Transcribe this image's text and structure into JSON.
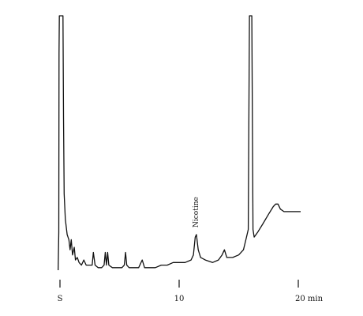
{
  "chart_data": {
    "type": "line",
    "title": "",
    "xlabel": "",
    "ylabel": "",
    "xlim": [
      0,
      20.5
    ],
    "ylim": [
      0,
      100
    ],
    "grid": false,
    "legend": "none",
    "x_ticks": [
      {
        "value": 0,
        "label": "S"
      },
      {
        "value": 10,
        "label": "10"
      },
      {
        "value": 20,
        "label": "20 min"
      }
    ],
    "annotations": [
      {
        "text": "Nicotine",
        "x": 11.4,
        "y": 21
      }
    ],
    "series": [
      {
        "values": [
          [
            -0.15,
            0
          ],
          [
            -0.1,
            15
          ],
          [
            -0.08,
            85
          ],
          [
            -0.05,
            100
          ],
          [
            0.1,
            100
          ],
          [
            0.25,
            100
          ],
          [
            0.3,
            60
          ],
          [
            0.35,
            30
          ],
          [
            0.45,
            20
          ],
          [
            0.6,
            14
          ],
          [
            0.75,
            12
          ],
          [
            0.85,
            8
          ],
          [
            0.95,
            12
          ],
          [
            1.05,
            6
          ],
          [
            1.2,
            9
          ],
          [
            1.3,
            4
          ],
          [
            1.45,
            5
          ],
          [
            1.6,
            3
          ],
          [
            1.8,
            2
          ],
          [
            2.0,
            4
          ],
          [
            2.2,
            2
          ],
          [
            2.5,
            2
          ],
          [
            2.7,
            2
          ],
          [
            2.8,
            7
          ],
          [
            2.95,
            2
          ],
          [
            3.2,
            1
          ],
          [
            3.5,
            1
          ],
          [
            3.7,
            2
          ],
          [
            3.8,
            7
          ],
          [
            3.9,
            2
          ],
          [
            4.0,
            7
          ],
          [
            4.1,
            2
          ],
          [
            4.4,
            1
          ],
          [
            4.7,
            1
          ],
          [
            5.0,
            1
          ],
          [
            5.2,
            1
          ],
          [
            5.4,
            2
          ],
          [
            5.5,
            7
          ],
          [
            5.6,
            2
          ],
          [
            5.8,
            1
          ],
          [
            6.2,
            1
          ],
          [
            6.6,
            1
          ],
          [
            6.9,
            4
          ],
          [
            7.1,
            1
          ],
          [
            7.4,
            1
          ],
          [
            8.0,
            1
          ],
          [
            8.5,
            2
          ],
          [
            9.0,
            2
          ],
          [
            9.5,
            3
          ],
          [
            10.0,
            3
          ],
          [
            10.5,
            3
          ],
          [
            11.0,
            4
          ],
          [
            11.2,
            6
          ],
          [
            11.35,
            13
          ],
          [
            11.45,
            14
          ],
          [
            11.6,
            8
          ],
          [
            11.8,
            5
          ],
          [
            12.2,
            4
          ],
          [
            12.8,
            3
          ],
          [
            13.3,
            4
          ],
          [
            13.6,
            6
          ],
          [
            13.8,
            8
          ],
          [
            14.0,
            5
          ],
          [
            14.5,
            5
          ],
          [
            15.0,
            6
          ],
          [
            15.4,
            8
          ],
          [
            15.6,
            12
          ],
          [
            15.8,
            16
          ],
          [
            15.9,
            100
          ],
          [
            16.1,
            100
          ],
          [
            16.2,
            16
          ],
          [
            16.3,
            13
          ],
          [
            16.6,
            15
          ],
          [
            17.0,
            18
          ],
          [
            17.5,
            22
          ],
          [
            17.9,
            25
          ],
          [
            18.1,
            26
          ],
          [
            18.3,
            26
          ],
          [
            18.5,
            24
          ],
          [
            18.8,
            23
          ],
          [
            19.2,
            23
          ],
          [
            19.6,
            23
          ],
          [
            20.2,
            23
          ]
        ]
      }
    ]
  }
}
